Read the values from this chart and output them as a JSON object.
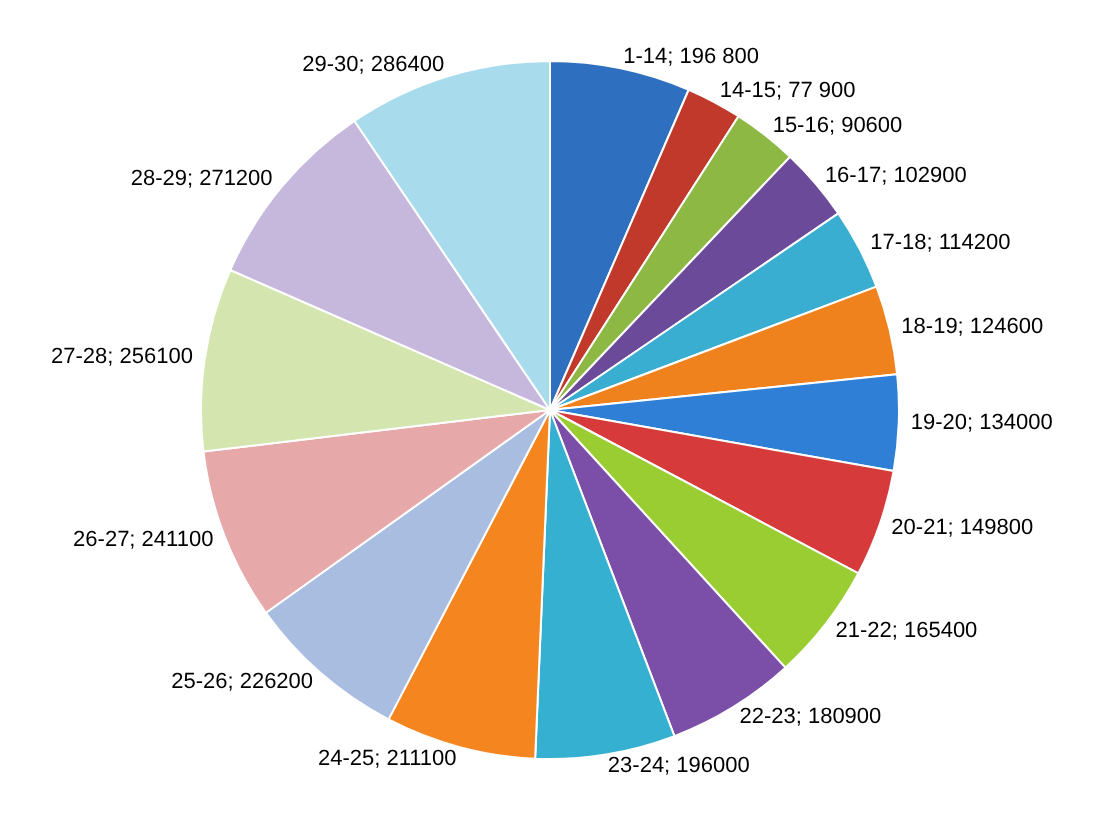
{
  "chart_data": {
    "type": "pie",
    "categories": [
      "1-14",
      "14-15",
      "15-16",
      "16-17",
      "17-18",
      "18-19",
      "19-20",
      "20-21",
      "21-22",
      "22-23",
      "23-24",
      "24-25",
      "25-26",
      "26-27",
      "27-28",
      "28-29",
      "29-30"
    ],
    "values": [
      196800,
      77900,
      90600,
      102900,
      114200,
      124600,
      134000,
      149800,
      165400,
      180900,
      196000,
      211100,
      226200,
      241100,
      256100,
      271200,
      286400
    ],
    "value_labels": [
      "196 800",
      "77 900",
      "90600",
      "102900",
      "114200",
      "124600",
      "134000",
      "149800",
      "165400",
      "180900",
      "196000",
      "211100",
      "226200",
      "241100",
      "256100",
      "271200",
      "286400"
    ],
    "colors": [
      "#2f6fbf",
      "#c0392b",
      "#8db843",
      "#6b4a9a",
      "#3aaed0",
      "#f0821e",
      "#2f7fd6",
      "#d63a3a",
      "#9acd32",
      "#7b4fa8",
      "#35b0d0",
      "#f5861f",
      "#a9bde0",
      "#e6a8a8",
      "#d4e5b0",
      "#c6b8dc",
      "#a8dcec"
    ]
  }
}
